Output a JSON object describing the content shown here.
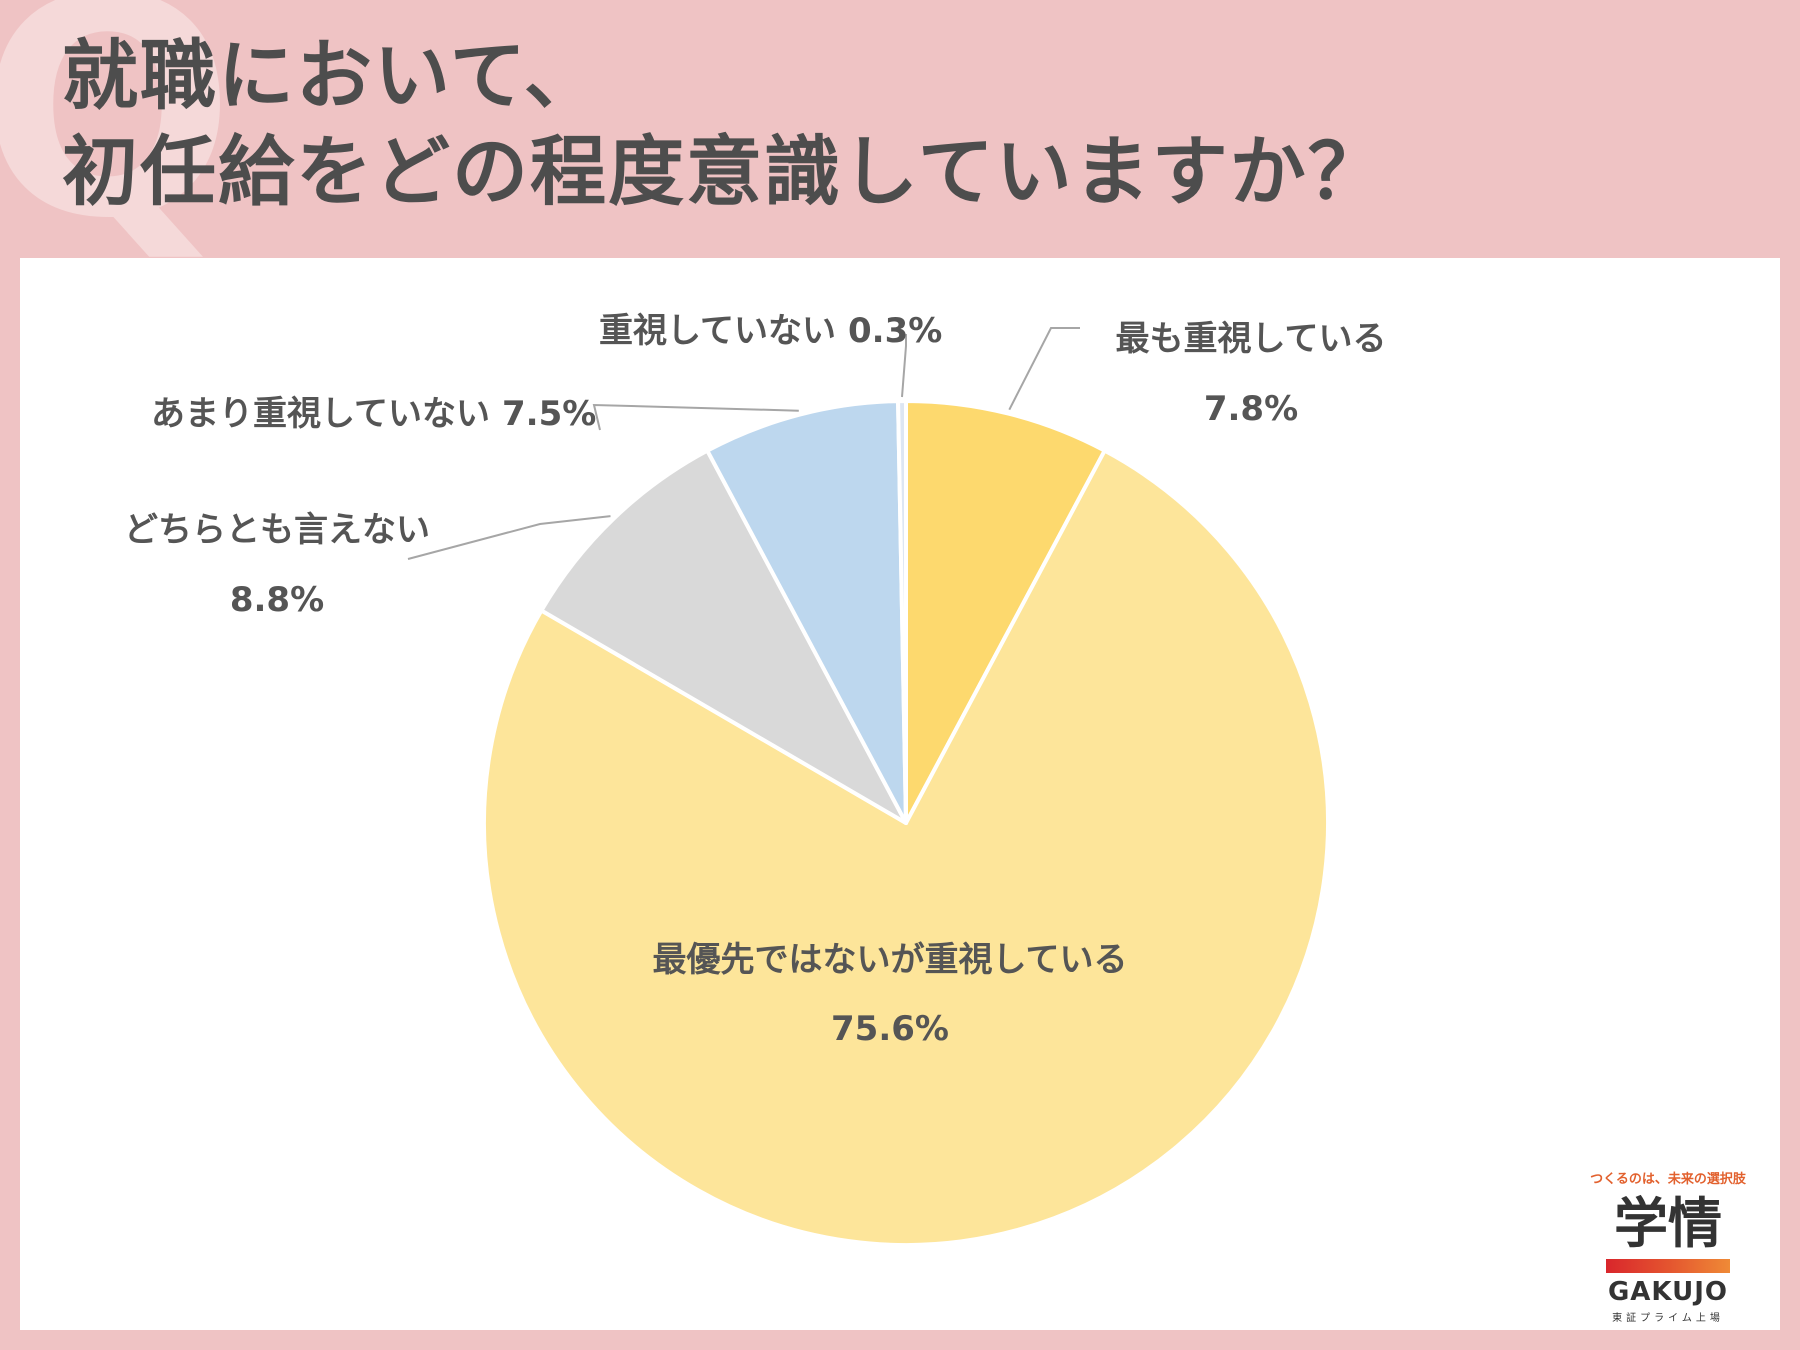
{
  "title": {
    "line1": "就職において、",
    "line2": "初任給をどの程度意識していますか？"
  },
  "chart_data": {
    "type": "pie",
    "start_angle_deg": 0,
    "direction": "clockwise",
    "slices": [
      {
        "label": "最も重視している",
        "value": 7.8,
        "display": "7.8%",
        "color": "#fdd96e"
      },
      {
        "label": "最優先ではないが重視している",
        "value": 75.6,
        "display": "75.6%",
        "color": "#fde59a"
      },
      {
        "label": "どちらとも言えない",
        "value": 8.8,
        "display": "8.8%",
        "color": "#d9d9d9"
      },
      {
        "label": "あまり重視していない",
        "value": 7.5,
        "display": "7.5%",
        "color": "#bdd7ee"
      },
      {
        "label": "重視していない",
        "value": 0.3,
        "display": "0.3%",
        "color": "#dde6f3"
      }
    ]
  },
  "logo": {
    "tagline": "つくるのは、未来の選択肢",
    "name_jp": "学情",
    "name_en": "GAKUJO",
    "sub": "東証プライム上場"
  }
}
